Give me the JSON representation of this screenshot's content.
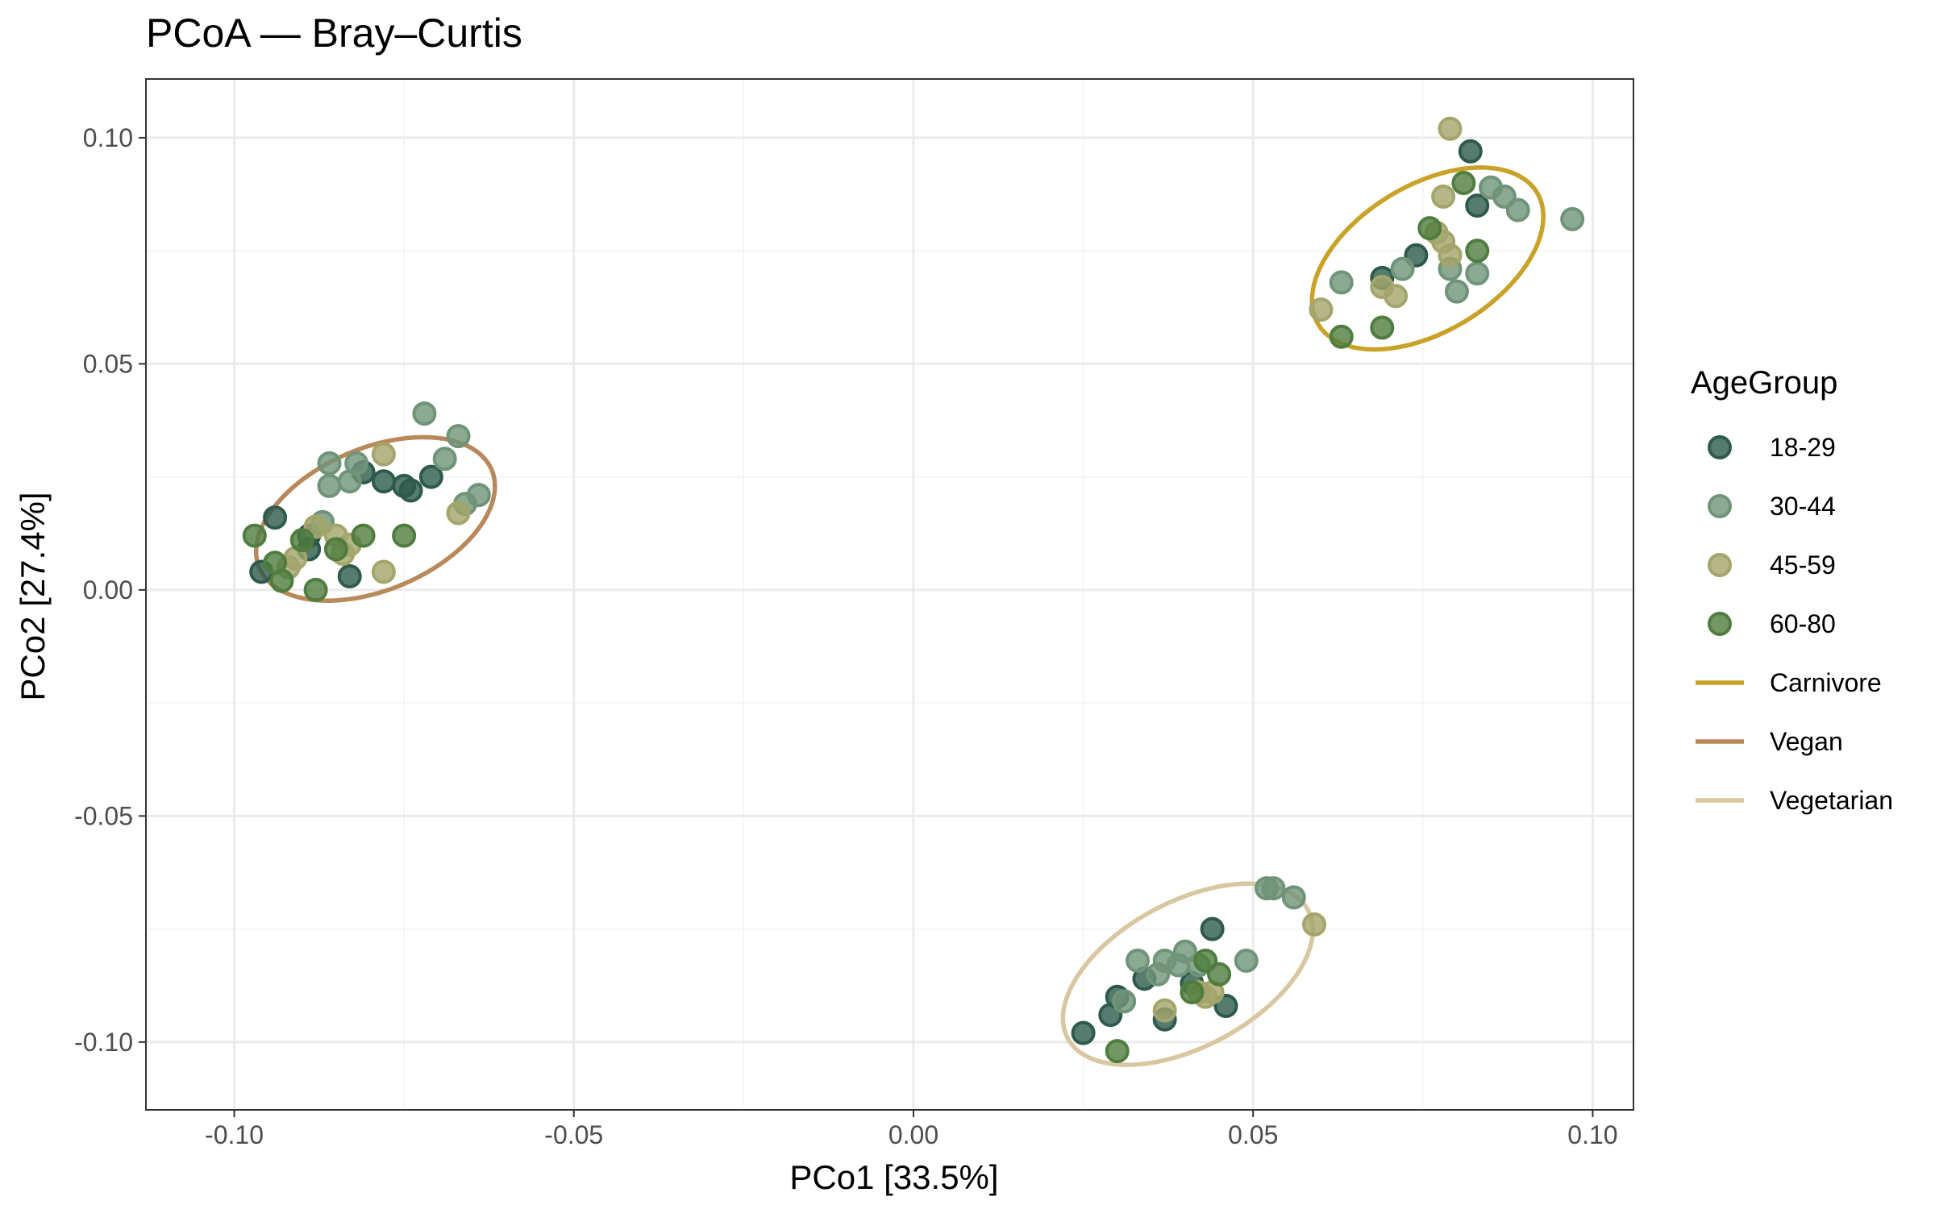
{
  "chart_data": {
    "type": "scatter",
    "title": "PCoA — Bray–Curtis",
    "xlabel": "PCo1 [33.5%]",
    "ylabel": "PCo2 [27.4%]",
    "xlim": [
      -0.113,
      0.106
    ],
    "ylim": [
      -0.115,
      0.113
    ],
    "x_ticks": [
      -0.1,
      -0.05,
      0.0,
      0.05,
      0.1
    ],
    "x_tick_labels": [
      "-0.10",
      "-0.05",
      "0.00",
      "0.05",
      "0.10"
    ],
    "y_ticks": [
      -0.1,
      -0.05,
      0.0,
      0.05,
      0.1
    ],
    "y_tick_labels": [
      "-0.10",
      "-0.05",
      "0.00",
      "0.05",
      "0.10"
    ],
    "grid": true,
    "legend_title": "AgeGroup",
    "legend_position": "right",
    "series": [
      {
        "name": "18-29",
        "color": "#2e5a4c",
        "points": [
          [
            -0.094,
            0.016
          ],
          [
            -0.089,
            0.009
          ],
          [
            -0.089,
            0.012
          ],
          [
            -0.096,
            0.004
          ],
          [
            -0.083,
            0.003
          ],
          [
            -0.081,
            0.026
          ],
          [
            -0.078,
            0.024
          ],
          [
            -0.075,
            0.023
          ],
          [
            -0.074,
            0.022
          ],
          [
            -0.071,
            0.025
          ],
          [
            0.082,
            0.097
          ],
          [
            0.083,
            0.085
          ],
          [
            0.069,
            0.069
          ],
          [
            0.074,
            0.074
          ],
          [
            0.025,
            -0.098
          ],
          [
            0.029,
            -0.094
          ],
          [
            0.03,
            -0.09
          ],
          [
            0.034,
            -0.086
          ],
          [
            0.037,
            -0.095
          ],
          [
            0.044,
            -0.075
          ],
          [
            0.046,
            -0.092
          ],
          [
            0.041,
            -0.087
          ]
        ]
      },
      {
        "name": "30-44",
        "color": "#6f9478",
        "points": [
          [
            -0.086,
            0.028
          ],
          [
            -0.086,
            0.023
          ],
          [
            -0.083,
            0.024
          ],
          [
            -0.082,
            0.028
          ],
          [
            -0.087,
            0.015
          ],
          [
            -0.072,
            0.039
          ],
          [
            -0.067,
            0.034
          ],
          [
            -0.069,
            0.029
          ],
          [
            -0.064,
            0.021
          ],
          [
            -0.066,
            0.019
          ],
          [
            0.063,
            0.068
          ],
          [
            0.08,
            0.066
          ],
          [
            0.079,
            0.071
          ],
          [
            0.083,
            0.07
          ],
          [
            0.085,
            0.089
          ],
          [
            0.087,
            0.087
          ],
          [
            0.089,
            0.084
          ],
          [
            0.097,
            0.082
          ],
          [
            0.072,
            0.071
          ],
          [
            0.033,
            -0.082
          ],
          [
            0.036,
            -0.085
          ],
          [
            0.037,
            -0.082
          ],
          [
            0.039,
            -0.083
          ],
          [
            0.04,
            -0.08
          ],
          [
            0.042,
            -0.083
          ],
          [
            0.049,
            -0.082
          ],
          [
            0.052,
            -0.066
          ],
          [
            0.053,
            -0.066
          ],
          [
            0.056,
            -0.068
          ],
          [
            0.031,
            -0.091
          ]
        ]
      },
      {
        "name": "45-59",
        "color": "#a3a56a",
        "points": [
          [
            -0.088,
            0.014
          ],
          [
            -0.091,
            0.007
          ],
          [
            -0.092,
            0.005
          ],
          [
            -0.084,
            0.008
          ],
          [
            -0.085,
            0.012
          ],
          [
            -0.083,
            0.01
          ],
          [
            -0.078,
            0.03
          ],
          [
            -0.078,
            0.004
          ],
          [
            -0.067,
            0.017
          ],
          [
            0.079,
            0.102
          ],
          [
            0.078,
            0.087
          ],
          [
            0.077,
            0.079
          ],
          [
            0.078,
            0.077
          ],
          [
            0.079,
            0.074
          ],
          [
            0.069,
            0.067
          ],
          [
            0.071,
            0.065
          ],
          [
            0.06,
            0.062
          ],
          [
            0.042,
            -0.089
          ],
          [
            0.043,
            -0.09
          ],
          [
            0.044,
            -0.089
          ],
          [
            0.059,
            -0.074
          ],
          [
            0.037,
            -0.093
          ]
        ]
      },
      {
        "name": "60-80",
        "color": "#4f7d3f",
        "points": [
          [
            -0.097,
            0.012
          ],
          [
            -0.094,
            0.006
          ],
          [
            -0.093,
            0.002
          ],
          [
            -0.088,
            0.0
          ],
          [
            -0.085,
            0.009
          ],
          [
            -0.081,
            0.012
          ],
          [
            -0.075,
            0.012
          ],
          [
            -0.09,
            0.011
          ],
          [
            0.063,
            0.056
          ],
          [
            0.069,
            0.058
          ],
          [
            0.076,
            0.08
          ],
          [
            0.081,
            0.09
          ],
          [
            0.083,
            0.075
          ],
          [
            0.03,
            -0.102
          ],
          [
            0.041,
            -0.089
          ],
          [
            0.045,
            -0.085
          ],
          [
            0.043,
            -0.082
          ]
        ]
      }
    ],
    "ellipses": [
      {
        "name": "Carnivore",
        "color": "#c9a227",
        "center": [
          0.0757,
          0.0733
        ],
        "semi_axes": [
          0.0227,
          0.0134
        ],
        "angle_deg": 55
      },
      {
        "name": "Vegan",
        "color": "#b8895a",
        "center": [
          -0.0792,
          0.0157
        ],
        "semi_axes": [
          0.0211,
          0.0138
        ],
        "angle_deg": 47
      },
      {
        "name": "Vegetarian",
        "color": "#d8c7a0",
        "center": [
          0.0404,
          -0.085
        ],
        "semi_axes": [
          0.0235,
          0.0137
        ],
        "angle_deg": 50
      }
    ],
    "legend": [
      {
        "label": "18-29",
        "kind": "point",
        "color": "#2e5a4c"
      },
      {
        "label": "30-44",
        "kind": "point",
        "color": "#6f9478"
      },
      {
        "label": "45-59",
        "kind": "point",
        "color": "#a3a56a"
      },
      {
        "label": "60-80",
        "kind": "point",
        "color": "#4f7d3f"
      },
      {
        "label": "Carnivore",
        "kind": "line",
        "color": "#c9a227"
      },
      {
        "label": "Vegan",
        "kind": "line",
        "color": "#b8895a"
      },
      {
        "label": "Vegetarian",
        "kind": "line",
        "color": "#d8c7a0"
      }
    ]
  }
}
